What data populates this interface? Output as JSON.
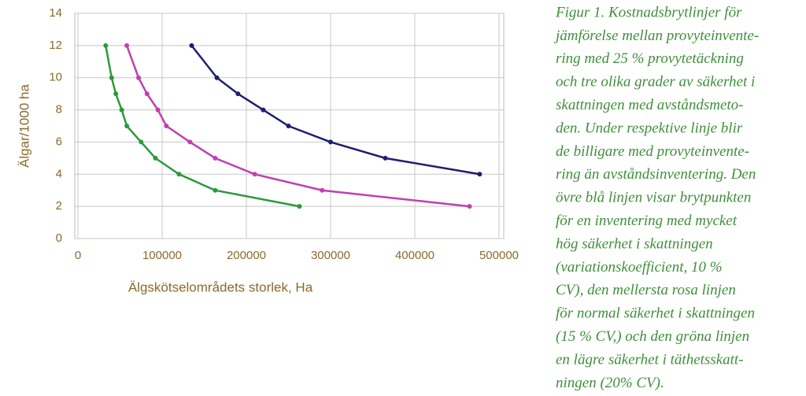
{
  "chart_data": {
    "type": "line",
    "xlabel": "Älgskötselområdets storlek, Ha",
    "ylabel": "Älgar/1000 ha",
    "xlim": [
      0,
      500000
    ],
    "ylim": [
      0,
      14
    ],
    "xticks": [
      0,
      100000,
      200000,
      300000,
      400000,
      500000
    ],
    "yticks": [
      0,
      2,
      4,
      6,
      8,
      10,
      12,
      14
    ],
    "grid": true,
    "series": [
      {
        "color": "#1f1f6e",
        "x": [
          135000,
          165000,
          190000,
          220000,
          250000,
          300000,
          365000,
          477000
        ],
        "values": [
          12,
          10,
          9,
          8,
          7,
          6,
          5,
          4
        ]
      },
      {
        "color": "#c040b0",
        "x": [
          58000,
          72000,
          82000,
          95000,
          105000,
          133000,
          163000,
          210000,
          290000,
          465000
        ],
        "values": [
          12,
          10,
          9,
          8,
          7,
          6,
          5,
          4,
          3,
          2
        ]
      },
      {
        "color": "#2a9a3a",
        "x": [
          33000,
          40000,
          45000,
          52000,
          58000,
          75000,
          92000,
          120000,
          163000,
          263000
        ],
        "values": [
          12,
          10,
          9,
          8,
          7,
          6,
          5,
          4,
          3,
          2
        ]
      }
    ],
    "caption": [
      "Figur 1. Kostnadsbrytlinjer för",
      "jämförelse mellan provyteinvente-",
      "ring med 25 % provytetäckning",
      "och tre olika grader av säkerhet i",
      "skattningen med avståndsmeto-",
      "den. Under respektive linje blir",
      "de billigare med provyteinvente-",
      "ring än avståndsinventering. Den",
      "övre blå linjen visar brytpunkten",
      "för en inventering med mycket",
      "hög säkerhet i skattningen",
      "(variationskoefficient, 10 %",
      "CV),  den mellersta rosa linjen",
      "för normal säkerhet i skattningen",
      "(15 % CV,) och den gröna linjen",
      "en lägre säkerhet i täthetsskatt-",
      "ningen (20% CV)."
    ]
  }
}
